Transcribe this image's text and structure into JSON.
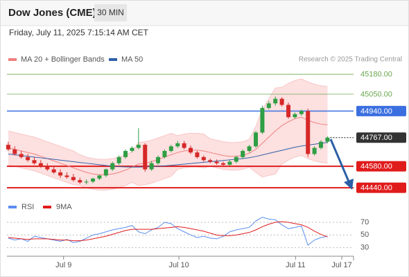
{
  "header": {
    "title": "Dow Jones (CME)",
    "interval": "30 MIN",
    "timestamp": "Friday, July 11, 2025 7:15:14 AM CET"
  },
  "chart_data": [
    {
      "type": "candlestick",
      "credit": "Research © 2025 Trading Central",
      "x": [
        0,
        1,
        2,
        3,
        4,
        5,
        6,
        7,
        8,
        9,
        10,
        11,
        12,
        13,
        14,
        15,
        16,
        17,
        18,
        19,
        20,
        21,
        22,
        23,
        24,
        25,
        26,
        27,
        28,
        29,
        30,
        31,
        32,
        33,
        34,
        35,
        36,
        37,
        38,
        39,
        40,
        41,
        42,
        43,
        44,
        45,
        46,
        47,
        48,
        49
      ],
      "open": [
        44720,
        44690,
        44660,
        44640,
        44620,
        44600,
        44580,
        44560,
        44540,
        44520,
        44510,
        44490,
        44475,
        44480,
        44500,
        44520,
        44560,
        44600,
        44640,
        44680,
        44700,
        44720,
        44560,
        44600,
        44640,
        44680,
        44710,
        44730,
        44700,
        44670,
        44640,
        44620,
        44610,
        44600,
        44590,
        44610,
        44640,
        44680,
        44710,
        44800,
        44960,
        44990,
        45020,
        44980,
        44900,
        44920,
        44940,
        44660,
        44700,
        44740
      ],
      "high": [
        44740,
        44710,
        44680,
        44660,
        44640,
        44620,
        44600,
        44580,
        44560,
        44540,
        44530,
        44505,
        44495,
        44505,
        44525,
        44565,
        44610,
        44650,
        44690,
        44710,
        44828,
        44730,
        44615,
        44650,
        44690,
        44720,
        44745,
        44745,
        44715,
        44680,
        44650,
        44630,
        44625,
        44610,
        44620,
        44650,
        44690,
        44720,
        44810,
        44975,
        45005,
        45035,
        45030,
        44995,
        44930,
        44950,
        44955,
        44710,
        44750,
        44775
      ],
      "low": [
        44680,
        44650,
        44630,
        44610,
        44590,
        44570,
        44550,
        44530,
        44505,
        44500,
        44480,
        44465,
        44462,
        44470,
        44490,
        44510,
        44550,
        44590,
        44630,
        44670,
        44690,
        44545,
        44550,
        44590,
        44630,
        44670,
        44700,
        44690,
        44660,
        44630,
        44610,
        44600,
        44590,
        44580,
        44585,
        44600,
        44630,
        44670,
        44700,
        44790,
        44950,
        44975,
        44970,
        44890,
        44890,
        44910,
        44640,
        44650,
        44690,
        44730
      ],
      "close": [
        44690,
        44660,
        44640,
        44620,
        44600,
        44580,
        44560,
        44540,
        44520,
        44510,
        44490,
        44475,
        44480,
        44500,
        44520,
        44560,
        44600,
        44640,
        44680,
        44700,
        44720,
        44560,
        44600,
        44640,
        44680,
        44710,
        44730,
        44700,
        44670,
        44640,
        44620,
        44610,
        44600,
        44590,
        44610,
        44640,
        44680,
        44710,
        44800,
        44960,
        44990,
        45020,
        44980,
        44900,
        44920,
        44940,
        44660,
        44700,
        44740,
        44767
      ],
      "up_color": "#2f9e44",
      "down_color": "#d62828",
      "xlim": [
        -0.2,
        53
      ],
      "ylim": [
        44400,
        45235
      ],
      "overlays": [
        {
          "name": "MA 20 + Bollinger Bands",
          "color": "#f08080",
          "band_color": "#fde0e0",
          "values": [
            44700,
            44690,
            44680,
            44670,
            44660,
            44645,
            44630,
            44615,
            44600,
            44585,
            44570,
            44555,
            44540,
            44530,
            44525,
            44525,
            44530,
            44540,
            44555,
            44575,
            44595,
            44600,
            44610,
            44625,
            44640,
            44655,
            44670,
            44680,
            44685,
            44685,
            44680,
            44670,
            44660,
            44650,
            44645,
            44645,
            44650,
            44665,
            44690,
            44730,
            44770,
            44810,
            44845,
            44870,
            44890,
            44900,
            44880,
            44865,
            44855,
            44850
          ],
          "upper": [
            44810,
            44800,
            44790,
            44780,
            44770,
            44755,
            44740,
            44725,
            44710,
            44695,
            44680,
            44655,
            44640,
            44630,
            44625,
            44625,
            44630,
            44640,
            44655,
            44675,
            44735,
            44740,
            44750,
            44765,
            44780,
            44795,
            44780,
            44790,
            44795,
            44795,
            44790,
            44760,
            44750,
            44740,
            44735,
            44735,
            44740,
            44755,
            44840,
            44950,
            45020,
            45090,
            45095,
            45120,
            45140,
            45150,
            45130,
            45115,
            45105,
            45100
          ],
          "lower": [
            44590,
            44580,
            44570,
            44560,
            44550,
            44535,
            44520,
            44505,
            44490,
            44475,
            44460,
            44455,
            44440,
            44430,
            44425,
            44425,
            44430,
            44440,
            44455,
            44475,
            44455,
            44460,
            44470,
            44485,
            44500,
            44515,
            44560,
            44570,
            44575,
            44575,
            44570,
            44580,
            44570,
            44560,
            44555,
            44555,
            44560,
            44575,
            44540,
            44510,
            44520,
            44530,
            44595,
            44620,
            44640,
            44650,
            44630,
            44615,
            44605,
            44600
          ]
        },
        {
          "name": "MA 50",
          "color": "#2f5fa7",
          "values": [
            44660,
            44655,
            44650,
            44645,
            44640,
            44635,
            44630,
            44625,
            44620,
            44615,
            44610,
            44605,
            44600,
            44595,
            44590,
            44585,
            44580,
            44578,
            44576,
            44575,
            44575,
            44576,
            44578,
            44580,
            44583,
            44586,
            44590,
            44594,
            44598,
            44602,
            44606,
            44610,
            44614,
            44618,
            44622,
            44626,
            44630,
            44636,
            44644,
            44654,
            44664,
            44674,
            44684,
            44694,
            44704,
            44712,
            44718,
            44724,
            44730,
            44735
          ]
        }
      ],
      "levels": [
        {
          "value": 45180,
          "label": "45180.00",
          "color": "#6aa84f",
          "line": "thin",
          "box": false
        },
        {
          "value": 45050,
          "label": "45050.00",
          "color": "#6aa84f",
          "line": "thin",
          "box": false
        },
        {
          "value": 44940,
          "label": "44940.00",
          "color": "#3b6fe0",
          "line": "medium",
          "box": true
        },
        {
          "value": 44767,
          "label": "44767.00",
          "color": "#333333",
          "line": "dotted",
          "box": true
        },
        {
          "value": 44580,
          "label": "44580.00",
          "color": "#e01b1b",
          "line": "thick",
          "box": true
        },
        {
          "value": 44440,
          "label": "44440.00",
          "color": "#e01b1b",
          "line": "thick",
          "box": true
        }
      ]
    },
    {
      "type": "line",
      "x": [
        0,
        1,
        2,
        3,
        4,
        5,
        6,
        7,
        8,
        9,
        10,
        11,
        12,
        13,
        14,
        15,
        16,
        17,
        18,
        19,
        20,
        21,
        22,
        23,
        24,
        25,
        26,
        27,
        28,
        29,
        30,
        31,
        32,
        33,
        34,
        35,
        36,
        37,
        38,
        39,
        40,
        41,
        42,
        43,
        44,
        45,
        46,
        47,
        48,
        49
      ],
      "series": [
        {
          "name": "RSI",
          "color": "#5b8def",
          "values": [
            45,
            42,
            44,
            40,
            48,
            46,
            44,
            42,
            40,
            43,
            38,
            40,
            45,
            50,
            52,
            55,
            58,
            60,
            62,
            65,
            55,
            52,
            58,
            62,
            70,
            68,
            60,
            55,
            50,
            46,
            48,
            45,
            44,
            48,
            55,
            58,
            60,
            62,
            72,
            78,
            75,
            74,
            66,
            60,
            62,
            64,
            34,
            42,
            46,
            48
          ]
        },
        {
          "name": "9MA",
          "color": "#e01b1b",
          "values": [
            46,
            45,
            44,
            43,
            44,
            44,
            44,
            43,
            42,
            42,
            41,
            41,
            42,
            44,
            46,
            48,
            51,
            54,
            57,
            59,
            59,
            59,
            59,
            60,
            61,
            62,
            63,
            62,
            60,
            58,
            56,
            53,
            50,
            49,
            49,
            50,
            52,
            54,
            58,
            63,
            67,
            70,
            71,
            70,
            68,
            66,
            62,
            56,
            51,
            47
          ]
        }
      ],
      "xlim": [
        -0.2,
        53
      ],
      "ylim": [
        22,
        82
      ],
      "yticks": [
        70,
        50,
        30
      ],
      "xticks": [
        {
          "value": 8.5,
          "label": "Jul 9"
        },
        {
          "value": 26.2,
          "label": "Jul 10"
        },
        {
          "value": 44.1,
          "label": "Jul 11"
        },
        {
          "value": 51.2,
          "label": "Jul 17"
        }
      ]
    }
  ]
}
